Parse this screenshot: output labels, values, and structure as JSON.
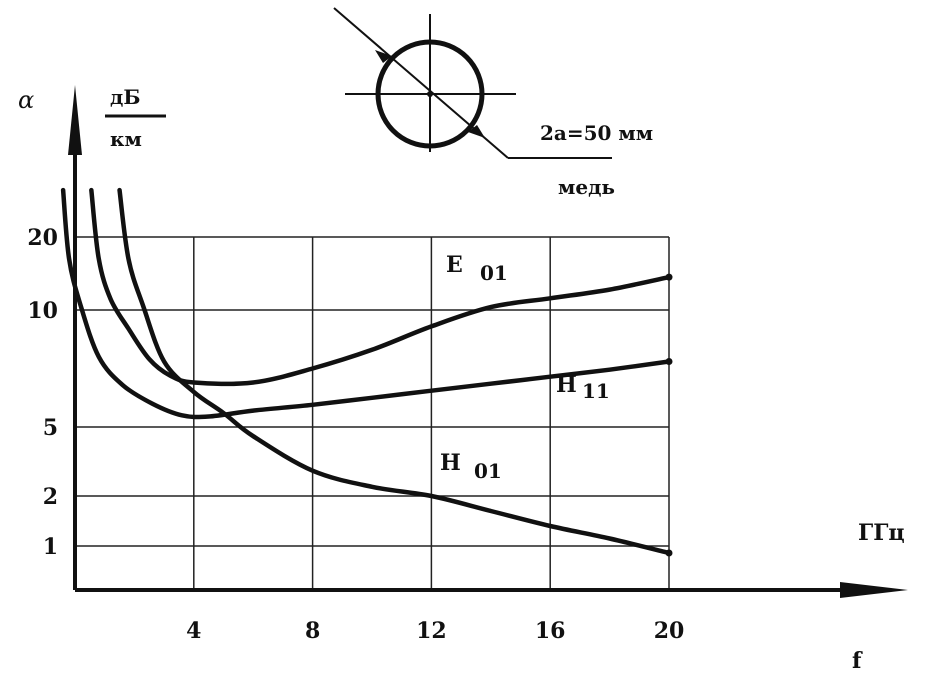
{
  "chart_data": {
    "type": "line",
    "ylabel_symbol": "α",
    "ylabel_unit_num": "дБ",
    "ylabel_unit_den": "км",
    "xlabel": "f",
    "xunit": "ГГц",
    "x_ticks": [
      "4",
      "8",
      "12",
      "16",
      "20"
    ],
    "y_ticks": [
      "20",
      "10",
      "5",
      "2",
      "1"
    ],
    "xlim": [
      0,
      20
    ],
    "grid": true,
    "annotation_diameter": "2a=50 мм",
    "annotation_material": "медь",
    "series": [
      {
        "name": "E",
        "sub": "01",
        "x": [
          0.55,
          0.8,
          1.2,
          1.8,
          2.5,
          3.2,
          4.0,
          6.0,
          8.0,
          10.0,
          12.0,
          14.0,
          16.0,
          18.0,
          20.0
        ],
        "y": [
          27,
          17,
          11.5,
          9.2,
          7.9,
          7.2,
          6.9,
          6.9,
          7.5,
          8.3,
          9.3,
          10.4,
          11.6,
          12.8,
          14.5
        ]
      },
      {
        "name": "H",
        "sub": "11",
        "x": [
          -0.4,
          -0.2,
          0.2,
          0.8,
          1.6,
          2.6,
          3.6,
          4.5,
          6.0,
          8.0,
          10.0,
          12.0,
          14.0,
          16.0,
          18.0,
          20.0
        ],
        "y": [
          27,
          17,
          10.5,
          8.0,
          6.8,
          6.0,
          5.5,
          5.45,
          5.7,
          5.95,
          6.25,
          6.55,
          6.85,
          7.15,
          7.45,
          7.8
        ]
      },
      {
        "name": "H",
        "sub": "01",
        "x": [
          1.5,
          1.8,
          2.3,
          3.0,
          4.0,
          5.0,
          6.0,
          8.0,
          10.0,
          12.0,
          14.0,
          16.0,
          18.0,
          20.0
        ],
        "y": [
          27,
          17,
          10.5,
          7.8,
          6.5,
          5.6,
          4.6,
          3.1,
          2.4,
          2.0,
          1.7,
          1.4,
          1.15,
          0.9
        ]
      }
    ]
  }
}
